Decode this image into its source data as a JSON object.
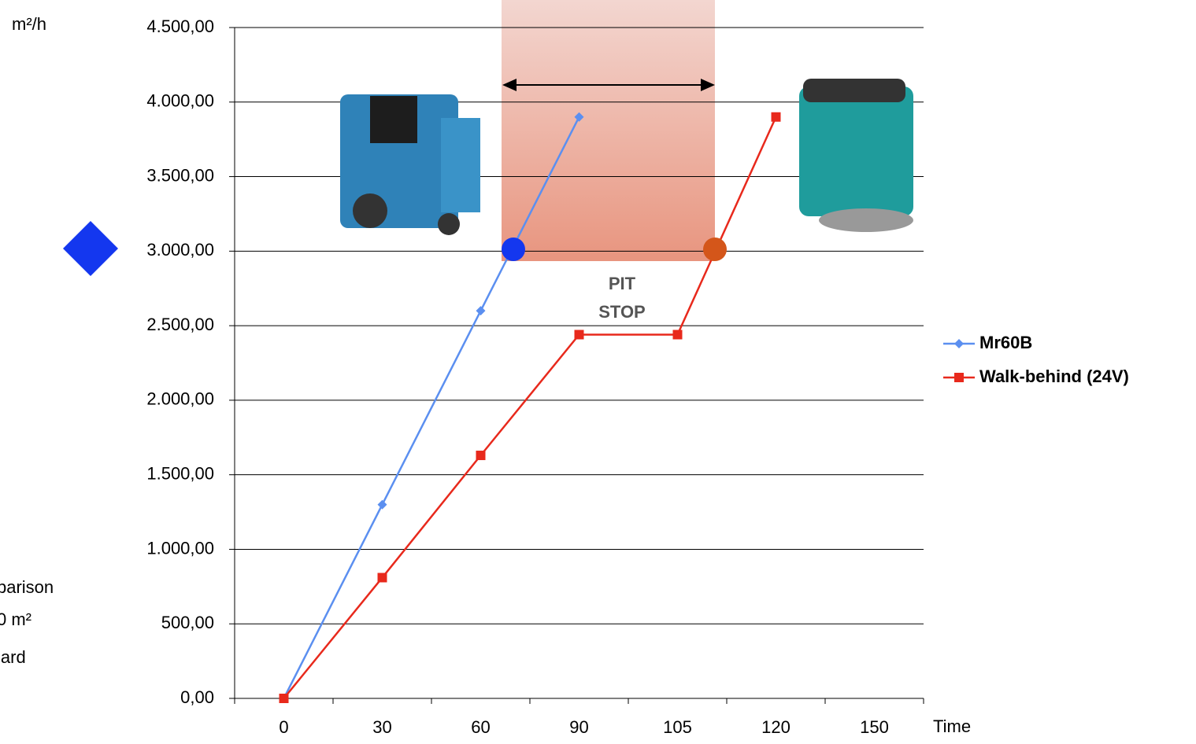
{
  "chart_data": {
    "type": "line",
    "y_label": "m²/h",
    "x_label": "Time",
    "annotations": [
      "PIT",
      "STOP"
    ],
    "side_text": [
      "parison",
      "0 m²",
      "lard"
    ],
    "categories": [
      "0",
      "30",
      "60",
      "90",
      "105",
      "120",
      "150"
    ],
    "series": [
      {
        "name": "Mr60B",
        "color": "#5b8ff0",
        "marker": "diamond",
        "values": [
          0,
          1300,
          2600,
          3900,
          null,
          null,
          null
        ]
      },
      {
        "name": "Walk-behind (24V)",
        "color": "#e8291c",
        "marker": "square",
        "values": [
          0,
          810,
          1630,
          2440,
          2440,
          3900,
          null
        ]
      }
    ],
    "ylim": [
      0,
      4500
    ],
    "yticks": [
      {
        "value": 0,
        "label": "0,00"
      },
      {
        "value": 500,
        "label": "500,00"
      },
      {
        "value": 1000,
        "label": "1.000,00"
      },
      {
        "value": 1500,
        "label": "1.500,00"
      },
      {
        "value": 2000,
        "label": "2.000,00"
      },
      {
        "value": 2500,
        "label": "2.500,00"
      },
      {
        "value": 3000,
        "label": "3.000,00"
      },
      {
        "value": 3500,
        "label": "3.500,00"
      },
      {
        "value": 4000,
        "label": "4.000,00"
      },
      {
        "value": 4500,
        "label": "4.500,00"
      }
    ],
    "grid": true,
    "legend": "right"
  }
}
